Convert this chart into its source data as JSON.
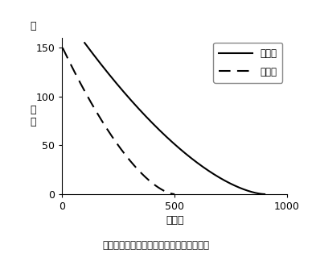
{
  "title": "",
  "xlabel": "世帯数",
  "ylabel_char1": "価",
  "ylabel_char2": "格",
  "ylabel_top": "円",
  "xlim": [
    0,
    1000
  ],
  "ylim": [
    0,
    160
  ],
  "xticks": [
    0,
    500,
    1000
  ],
  "yticks": [
    0,
    50,
    100,
    150
  ],
  "domestic_label": "国内産",
  "foreign_label": "外国産",
  "caption": "図２　国内産と外国産のイチゴの需要関数",
  "bg_color": "#ffffff",
  "line_color": "#000000",
  "domestic_x_start": 100,
  "domestic_x_end": 900,
  "domestic_y_start": 155,
  "domestic_power": 1.6,
  "foreign_x_start": 2,
  "foreign_x_end": 500,
  "foreign_y_start": 150,
  "foreign_power": 1.6
}
